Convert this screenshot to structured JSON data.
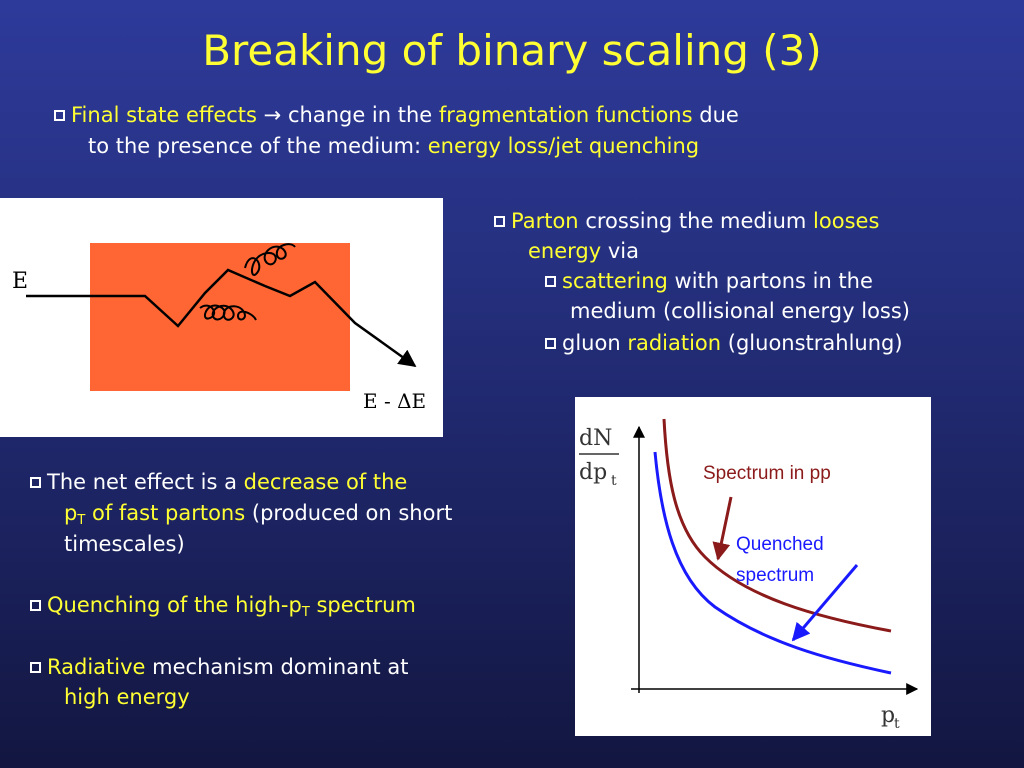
{
  "title": "Breaking of binary scaling (3)",
  "intro": {
    "l1_a": "Final state effects",
    "l1_arrow": "→",
    "l1_b": "change in the",
    "l1_c": "fragmentation functions",
    "l1_d": "due",
    "l2_a": "to the presence of the medium:",
    "l2_b": "energy loss/jet quenching"
  },
  "parton": {
    "a1": "Parton",
    "a2": "crossing the medium",
    "a3": "looses",
    "b1": "energy",
    "b2": "via",
    "c1": "scattering",
    "c2": "with partons in the",
    "d1": "medium (collisional energy loss)",
    "e1": "gluon",
    "e2": "radiation",
    "e3": "(gluonstrahlung)"
  },
  "net": {
    "a1": "The net effect is a",
    "a2": "decrease of the",
    "b1": "p",
    "b1_sub": "T",
    "b2": "of fast partons",
    "b3": "(produced on short",
    "c1": "timescales)"
  },
  "quench": {
    "a": "Quenching of the high-p",
    "sub": "T",
    "b": "spectrum"
  },
  "radiative": {
    "a1": "Radiative",
    "a2": "mechanism dominant at",
    "b1": "high energy"
  },
  "diagram": {
    "label_in": "E",
    "label_out": "E - ΔE",
    "medium_color": "#ff6633"
  },
  "plot": {
    "ylabel_num": "dN",
    "ylabel_den": "dp",
    "ylabel_sub": "t",
    "xlabel": "p",
    "xlabel_sub": "t",
    "label_pp": "Spectrum in pp",
    "label_q1": "Quenched",
    "label_q2": "spectrum",
    "color_pp": "#8b1a1a",
    "color_q": "#1a1aff"
  }
}
